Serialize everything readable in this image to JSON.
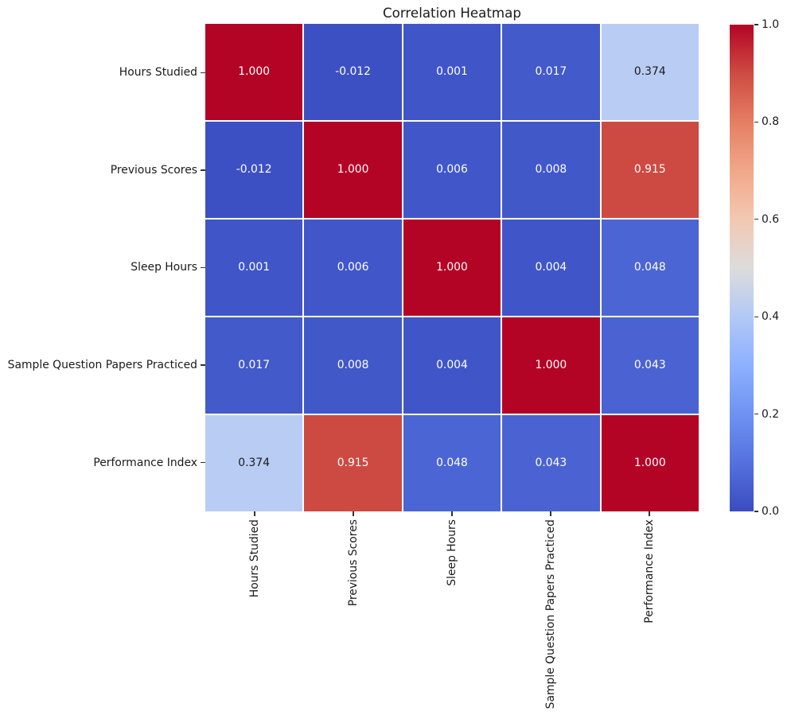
{
  "chart_data": {
    "type": "heatmap",
    "title": "Correlation Heatmap",
    "colormap": "coolwarm",
    "categories": [
      "Hours Studied",
      "Previous Scores",
      "Sleep Hours",
      "Sample Question Papers Practiced",
      "Performance Index"
    ],
    "matrix": [
      [
        1.0,
        -0.012,
        0.001,
        0.017,
        0.374
      ],
      [
        -0.012,
        1.0,
        0.006,
        0.008,
        0.915
      ],
      [
        0.001,
        0.006,
        1.0,
        0.004,
        0.048
      ],
      [
        0.017,
        0.008,
        0.004,
        1.0,
        0.043
      ],
      [
        0.374,
        0.915,
        0.048,
        0.043,
        1.0
      ]
    ],
    "cell_text": [
      [
        "1.000",
        "-0.012",
        "0.001",
        "0.017",
        "0.374"
      ],
      [
        "-0.012",
        "1.000",
        "0.006",
        "0.008",
        "0.915"
      ],
      [
        "0.001",
        "0.006",
        "1.000",
        "0.004",
        "0.048"
      ],
      [
        "0.017",
        "0.008",
        "0.004",
        "1.000",
        "0.043"
      ],
      [
        "0.374",
        "0.915",
        "0.048",
        "0.043",
        "1.000"
      ]
    ],
    "cell_colors": [
      [
        "#b40426",
        "#3d50c3",
        "#4055c8",
        "#435acb",
        "#b9cdf4"
      ],
      [
        "#3d50c3",
        "#b40426",
        "#4157c9",
        "#4158c9",
        "#cd4a42"
      ],
      [
        "#4055c8",
        "#4157c9",
        "#b40426",
        "#4056c8",
        "#4c65d4"
      ],
      [
        "#435acb",
        "#4158c9",
        "#4056c8",
        "#b40426",
        "#4b63d2"
      ],
      [
        "#b9cdf4",
        "#cd4a42",
        "#4c65d4",
        "#4b63d2",
        "#b40426"
      ]
    ],
    "cell_text_colors": [
      [
        "#ffffff",
        "#ffffff",
        "#ffffff",
        "#ffffff",
        "#1a1a1a"
      ],
      [
        "#ffffff",
        "#ffffff",
        "#ffffff",
        "#ffffff",
        "#ffffff"
      ],
      [
        "#ffffff",
        "#ffffff",
        "#ffffff",
        "#ffffff",
        "#ffffff"
      ],
      [
        "#ffffff",
        "#ffffff",
        "#ffffff",
        "#ffffff",
        "#ffffff"
      ],
      [
        "#1a1a1a",
        "#ffffff",
        "#ffffff",
        "#ffffff",
        "#ffffff"
      ]
    ],
    "colorbar": {
      "ticks": [
        "1.0",
        "0.8",
        "0.6",
        "0.4",
        "0.2",
        "0.0"
      ],
      "range": [
        0.0,
        1.0
      ],
      "gradient_stops_bottom_to_top": [
        "#3b4cc0",
        "#5571de",
        "#6f92f3",
        "#8db0fe",
        "#b2c9f7",
        "#dddcdb",
        "#f3c8b2",
        "#f1a78a",
        "#e57e63",
        "#ce4b42",
        "#b40426"
      ],
      "vmin_color": "#3b4cc0",
      "vmax_color": "#b40426"
    }
  }
}
